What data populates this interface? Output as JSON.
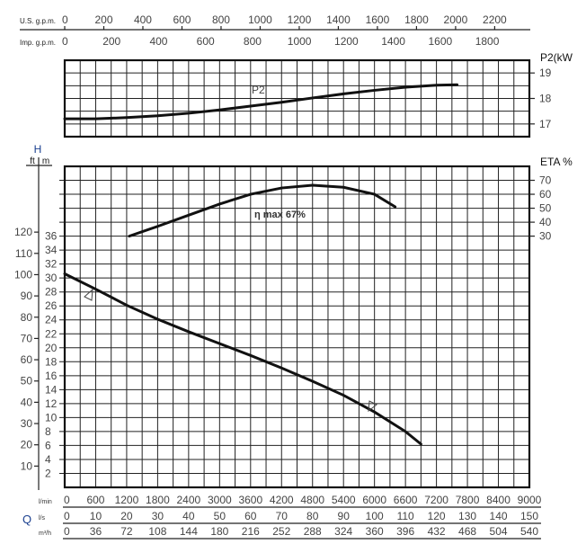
{
  "chart_data": {
    "type": "line",
    "x_unit": "l/min",
    "xlim": [
      0,
      9000
    ],
    "top_scales": [
      {
        "label": "U.S. g.p.m.",
        "factor_per_lmin": 0.26417,
        "ticks": [
          0,
          200,
          400,
          600,
          800,
          1000,
          1200,
          1400,
          1600,
          1800,
          2000,
          2200
        ]
      },
      {
        "label": "Imp. g.p.m.",
        "factor_per_lmin": 0.21997,
        "ticks": [
          0,
          200,
          400,
          600,
          800,
          1000,
          1200,
          1400,
          1600,
          1800
        ]
      }
    ],
    "bottom_scales": {
      "q_label": "Q",
      "rows": [
        {
          "label": "l/min",
          "ticks": [
            "0",
            "600",
            "1200",
            "1800",
            "2400",
            "3000",
            "3600",
            "4200",
            "4800",
            "5400",
            "6000",
            "6600",
            "7200",
            "7800",
            "8400",
            "9000"
          ]
        },
        {
          "label": "l/s",
          "ticks": [
            "0",
            "10",
            "20",
            "30",
            "40",
            "50",
            "60",
            "70",
            "80",
            "90",
            "100",
            "110",
            "120",
            "130",
            "140",
            "150"
          ]
        },
        {
          "label": "m³/h",
          "ticks": [
            "0",
            "36",
            "72",
            "108",
            "144",
            "180",
            "216",
            "252",
            "288",
            "324",
            "360",
            "396",
            "432",
            "468",
            "504",
            "540"
          ]
        }
      ]
    },
    "power_chart": {
      "ylabel": "P2(kW",
      "ylim": [
        16.5,
        19.5
      ],
      "yticks": [
        17,
        18,
        19
      ],
      "series": [
        {
          "name": "P2",
          "x": [
            0,
            600,
            1200,
            1800,
            2400,
            3000,
            3600,
            4200,
            4800,
            5400,
            6000,
            6600,
            7200,
            7600
          ],
          "y": [
            17.2,
            17.2,
            17.25,
            17.32,
            17.42,
            17.55,
            17.7,
            17.85,
            18.02,
            18.18,
            18.32,
            18.44,
            18.52,
            18.54
          ]
        }
      ]
    },
    "head_chart": {
      "h_label": "H",
      "ft_label": "ft",
      "m_label": "m",
      "ylim_m": [
        0,
        46
      ],
      "m_ticks": [
        2,
        4,
        6,
        8,
        10,
        12,
        14,
        16,
        18,
        20,
        22,
        24,
        26,
        28,
        30,
        32,
        34,
        36
      ],
      "ft_ticks": [
        10,
        20,
        30,
        40,
        50,
        60,
        70,
        80,
        90,
        100,
        110,
        120
      ],
      "eta_label": "ETA %",
      "eta_ticks": [
        30,
        40,
        50,
        60,
        70
      ],
      "eta_annotation": "η max 67%",
      "series": [
        {
          "name": "H",
          "unit": "m",
          "x": [
            0,
            600,
            1200,
            1800,
            2400,
            3000,
            3600,
            4200,
            4800,
            5400,
            6000,
            6600,
            6900
          ],
          "y": [
            30.6,
            28.4,
            26.1,
            24.1,
            22.3,
            20.6,
            18.9,
            17.1,
            15.2,
            13.2,
            10.8,
            8.0,
            6.2
          ]
        },
        {
          "name": "ETA",
          "unit": "%",
          "x": [
            1250,
            1800,
            2400,
            3000,
            3600,
            4200,
            4800,
            5400,
            6000,
            6400
          ],
          "y": [
            30,
            37,
            45,
            53,
            60,
            64.5,
            66.5,
            65,
            60,
            51
          ]
        }
      ]
    }
  }
}
